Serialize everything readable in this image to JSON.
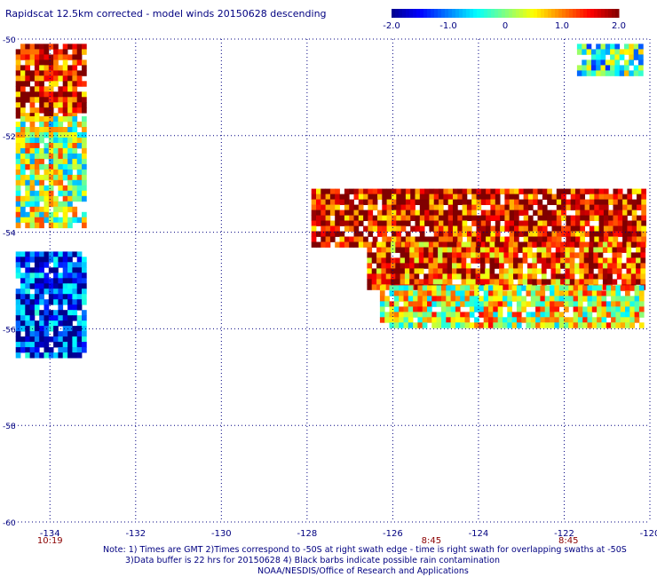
{
  "title": "Rapidscat 12.5km corrected - model winds 20150628 descending",
  "colorbar": {
    "min": -2.0,
    "max": 2.0,
    "ticks": [
      {
        "value": -2.0,
        "label": "-2.0"
      },
      {
        "value": -1.0,
        "label": "-1.0"
      },
      {
        "value": 0,
        "label": "0"
      },
      {
        "value": 1.0,
        "label": "1.0"
      },
      {
        "value": 2.0,
        "label": "2.0"
      }
    ]
  },
  "chart_data": {
    "type": "heatmap",
    "title": "Rapidscat 12.5km corrected - model winds 20150628 descending",
    "xlim": [
      -135,
      -120
    ],
    "ylim": [
      -60,
      -50
    ],
    "x_ticks": [
      {
        "value": -134,
        "label": "-134"
      },
      {
        "value": -132,
        "label": "-132"
      },
      {
        "value": -130,
        "label": "-130"
      },
      {
        "value": -128,
        "label": "-128"
      },
      {
        "value": -126,
        "label": "-126"
      },
      {
        "value": -124,
        "label": "-124"
      },
      {
        "value": -122,
        "label": "-122"
      },
      {
        "value": -120,
        "label": "-120"
      }
    ],
    "y_ticks": [
      {
        "value": -50,
        "label": "-50"
      },
      {
        "value": -52,
        "label": "-52"
      },
      {
        "value": -54,
        "label": "-54"
      },
      {
        "value": -56,
        "label": "-56"
      },
      {
        "value": -58,
        "label": "-58"
      },
      {
        "value": -60,
        "label": "-60"
      }
    ],
    "time_labels": [
      {
        "lon": -134,
        "label": "10:19"
      },
      {
        "lon": -125.1,
        "label": "8:45"
      },
      {
        "lon": -121.9,
        "label": "8:45"
      }
    ],
    "grid": true,
    "cell_deg": 0.11,
    "value_range": [
      -2.0,
      2.0
    ],
    "swaths": [
      {
        "lon": [
          -134.8,
          -133.2
        ],
        "lat": [
          -50.1,
          -51.6
        ],
        "trend": 1.5
      },
      {
        "lon": [
          -134.8,
          -133.2
        ],
        "lat": [
          -51.6,
          -53.8
        ],
        "trend": 0.2
      },
      {
        "lon": [
          -134.8,
          -133.2
        ],
        "lat": [
          -54.4,
          -56.5
        ],
        "trend": -1.4
      },
      {
        "lon": [
          -127.9,
          -120.2
        ],
        "lat": [
          -53.1,
          -54.2
        ],
        "trend": 1.6
      },
      {
        "lon": [
          -126.6,
          -120.2
        ],
        "lat": [
          -54.2,
          -55.1
        ],
        "trend": 1.3
      },
      {
        "lon": [
          -126.3,
          -120.2
        ],
        "lat": [
          -55.1,
          -55.9
        ],
        "trend": 0.4
      },
      {
        "lon": [
          -121.7,
          -120.2
        ],
        "lat": [
          -50.1,
          -50.7
        ],
        "trend": -0.3
      }
    ]
  },
  "notes": {
    "line1": "Note: 1) Times are GMT 2)Times correspond to -50S at right swath edge - time is right swath for overlapping swaths at -50S",
    "line2": "3)Data buffer is 22 hrs for 20150628 4) Black barbs indicate possible rain contamination",
    "line3": "NOAA/NESDIS/Office of Research and Applications"
  }
}
